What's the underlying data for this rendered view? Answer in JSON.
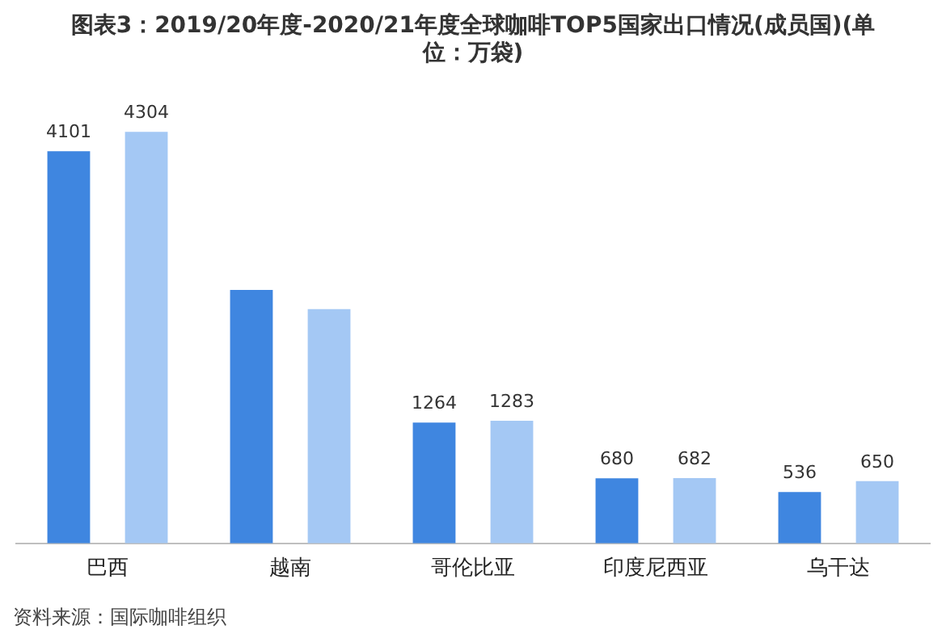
{
  "chart_data": {
    "type": "bar",
    "title": "图表3：2019/20年度-2020/21年度全球咖啡TOP5国家出口情况(成员国)(单位：万袋)",
    "categories": [
      "巴西",
      "越南",
      "哥伦比亚",
      "印度尼西亚",
      "乌干达"
    ],
    "series": [
      {
        "color": "#3f86e0",
        "values": [
          4101,
          2650,
          1264,
          680,
          536
        ],
        "value_labels": [
          "4101",
          null,
          "1264",
          "680",
          "536"
        ]
      },
      {
        "color": "#a4c8f4",
        "values": [
          4304,
          2450,
          1283,
          682,
          650
        ],
        "value_labels": [
          "4304",
          null,
          "1283",
          "682",
          "650"
        ]
      }
    ],
    "tick_labels": "x",
    "grid": false,
    "legend": false,
    "annotations": [
      "资料来源：国际咖啡组织"
    ]
  }
}
